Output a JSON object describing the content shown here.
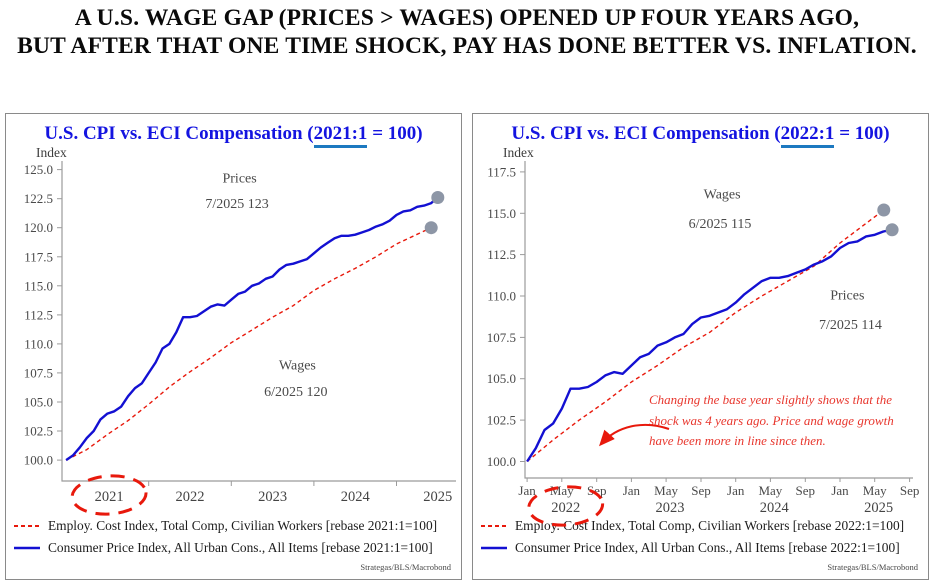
{
  "header": {
    "line1": "A U.S. WAGE GAP (PRICES > WAGES) OPENED UP FOUR YEARS AGO,",
    "line2": "BUT AFTER THAT ONE TIME SHOCK, PAY HAS DONE BETTER VS. INFLATION."
  },
  "colors": {
    "cpi_blue": "#1310d2",
    "eci_red": "#e8190c",
    "title_blue": "#1414e0",
    "underline_blue": "#1d79c0",
    "endpoint_gray": "#8d96a6",
    "note_red": "#e8362d",
    "axis_gray": "#9b9b9b"
  },
  "chart_data": [
    {
      "type": "line",
      "title_prefix": "U.S. CPI vs. ECI Compensation (",
      "title_highlight": "2021:1",
      "title_suffix": " = 100)",
      "ylabel": "Index",
      "source": "Strategas/BLS/Macrobond",
      "accent_red": "#e8190c",
      "ylim": [
        98.2,
        126.0
      ],
      "yticks": [
        100.0,
        102.5,
        105.0,
        107.5,
        110.0,
        112.5,
        115.0,
        117.5,
        120.0,
        122.5,
        125.0
      ],
      "xlim": [
        2020.95,
        2025.72
      ],
      "xticks": [
        2022,
        2023,
        2024,
        2025
      ],
      "month_labels": [],
      "year_labels": [
        {
          "text": "2021",
          "x": 2021.52,
          "circled": true
        },
        {
          "text": "2022",
          "x": 2022.5,
          "circled": false
        },
        {
          "text": "2023",
          "x": 2023.5,
          "circled": false
        },
        {
          "text": "2024",
          "x": 2024.5,
          "circled": false
        },
        {
          "text": "2025",
          "x": 2025.5,
          "circled": false
        }
      ],
      "series": [
        {
          "name": "Employ. Cost Index, Total Comp, Civilian Workers [rebase 2021:1=100]",
          "color": "#e8190c",
          "dash": true,
          "x": [
            2021.0,
            2021.25,
            2021.5,
            2021.75,
            2022.0,
            2022.25,
            2022.5,
            2022.75,
            2023.0,
            2023.25,
            2023.5,
            2023.75,
            2024.0,
            2024.25,
            2024.5,
            2024.75,
            2025.0,
            2025.42
          ],
          "y": [
            100,
            100.9,
            102.2,
            103.4,
            104.8,
            106.3,
            107.6,
            108.8,
            110.1,
            111.2,
            112.3,
            113.3,
            114.6,
            115.6,
            116.5,
            117.5,
            118.6,
            120.0
          ]
        },
        {
          "name": "Consumer Price Index, All Urban Cons., All Items [rebase 2021:1=100]",
          "color": "#1310d2",
          "dash": false,
          "x_start": 2021.0,
          "y": [
            100,
            100.4,
            101.1,
            101.9,
            102.5,
            103.5,
            104,
            104.2,
            104.6,
            105.5,
            106.2,
            106.6,
            107.5,
            108.4,
            109.6,
            110,
            111,
            112.3,
            112.3,
            112.4,
            112.8,
            113.2,
            113.4,
            113.3,
            113.8,
            114.3,
            114.5,
            115,
            115.2,
            115.6,
            115.8,
            116.4,
            116.8,
            116.9,
            117.1,
            117.3,
            117.8,
            118.3,
            118.7,
            119.1,
            119.3,
            119.3,
            119.4,
            119.6,
            119.8,
            120.1,
            120.3,
            120.6,
            121.1,
            121.4,
            121.5,
            121.8,
            121.9,
            122.1,
            122.6
          ]
        }
      ],
      "annotations": [
        {
          "text": "Prices",
          "x": 2023.1,
          "y": 123.9
        },
        {
          "text": "7/2025 123",
          "x": 2023.07,
          "y": 121.7
        },
        {
          "text": "Wages",
          "x": 2023.8,
          "y": 107.8
        },
        {
          "text": "6/2025 120",
          "x": 2023.78,
          "y": 105.5
        }
      ]
    },
    {
      "type": "line",
      "title_prefix": "U.S. CPI vs. ECI Compensation (",
      "title_highlight": "2022:1",
      "title_suffix": " = 100)",
      "ylabel": "Index",
      "source": "Strategas/BLS/Macrobond",
      "accent_red": "#e8190c",
      "ylim": [
        99.0,
        118.34
      ],
      "yticks": [
        100.0,
        102.5,
        105.0,
        107.5,
        110.0,
        112.5,
        115.0,
        117.5
      ],
      "xlim": [
        2021.98,
        2025.7
      ],
      "xticks": [],
      "month_labels": [
        {
          "text": "Jan",
          "x": 2022.0
        },
        {
          "text": "May",
          "x": 2022.333
        },
        {
          "text": "Sep",
          "x": 2022.667
        },
        {
          "text": "Jan",
          "x": 2023.0
        },
        {
          "text": "May",
          "x": 2023.333
        },
        {
          "text": "Sep",
          "x": 2023.667
        },
        {
          "text": "Jan",
          "x": 2024.0
        },
        {
          "text": "May",
          "x": 2024.333
        },
        {
          "text": "Sep",
          "x": 2024.667
        },
        {
          "text": "Jan",
          "x": 2025.0
        },
        {
          "text": "May",
          "x": 2025.333
        },
        {
          "text": "Sep",
          "x": 2025.667
        }
      ],
      "year_labels": [
        {
          "text": "2022",
          "x": 2022.37,
          "circled": true
        },
        {
          "text": "2023",
          "x": 2023.37,
          "circled": false
        },
        {
          "text": "2024",
          "x": 2024.37,
          "circled": false
        },
        {
          "text": "2025",
          "x": 2025.37,
          "circled": false
        }
      ],
      "series": [
        {
          "name": "Employ. Cost Index, Total Comp, Civilian Workers [rebase 2022:1=100]",
          "color": "#e8190c",
          "dash": true,
          "x": [
            2022.0,
            2022.25,
            2022.5,
            2022.75,
            2023.0,
            2023.25,
            2023.5,
            2023.75,
            2024.0,
            2024.25,
            2024.5,
            2024.75,
            2025.0,
            2025.42
          ],
          "y": [
            100,
            101.3,
            102.5,
            103.6,
            104.8,
            105.8,
            106.9,
            107.8,
            109.0,
            110.0,
            110.9,
            111.8,
            113.2,
            115.2
          ]
        },
        {
          "name": "Consumer Price Index, All Urban Cons., All Items [rebase 2022:1=100]",
          "color": "#1310d2",
          "dash": false,
          "x_start": 2022.0,
          "y": [
            100,
            100.8,
            101.9,
            102.3,
            103.2,
            104.4,
            104.4,
            104.5,
            104.8,
            105.2,
            105.4,
            105.3,
            105.8,
            106.3,
            106.5,
            107,
            107.2,
            107.5,
            107.7,
            108.3,
            108.7,
            108.8,
            109,
            109.2,
            109.6,
            110.1,
            110.5,
            110.9,
            111.1,
            111.1,
            111.2,
            111.4,
            111.6,
            111.9,
            112.1,
            112.4,
            112.9,
            113.2,
            113.3,
            113.6,
            113.7,
            113.9,
            114
          ]
        }
      ],
      "annotations": [
        {
          "text": "Wages",
          "x": 2023.87,
          "y": 115.9
        },
        {
          "text": "6/2025 115",
          "x": 2023.85,
          "y": 114.1
        },
        {
          "text": "Prices",
          "x": 2025.07,
          "y": 109.8
        },
        {
          "text": "7/2025 114",
          "x": 2025.1,
          "y": 108.0
        }
      ],
      "note": {
        "lines": [
          "Changing the base year slightly shows that the",
          "shock was 4 years ago. Price and wage growth",
          "have been more in line since then."
        ]
      }
    }
  ]
}
